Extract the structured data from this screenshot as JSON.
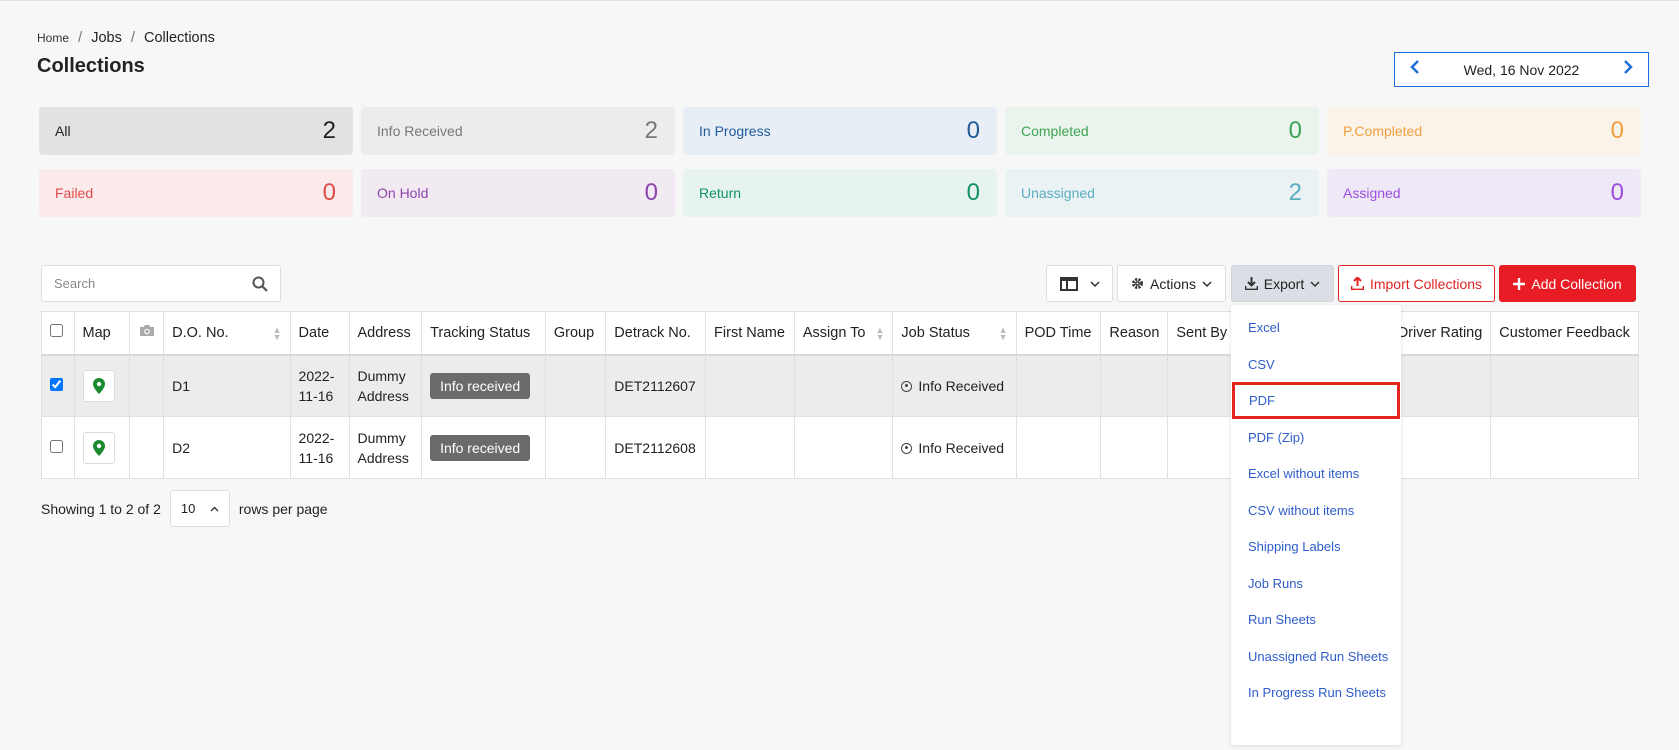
{
  "breadcrumb": {
    "home": "Home",
    "jobs": "Jobs",
    "current": "Collections"
  },
  "page_title": "Collections",
  "date_nav": {
    "date": "Wed, 16 Nov 2022"
  },
  "stats": [
    {
      "label": "All",
      "count": "2",
      "bg": "#e2e2e2",
      "color": "#222222"
    },
    {
      "label": "Info Received",
      "count": "2",
      "bg": "#ececec",
      "color": "#777777"
    },
    {
      "label": "In Progress",
      "count": "0",
      "bg": "#e8eef6",
      "color": "#1f5a99"
    },
    {
      "label": "Completed",
      "count": "0",
      "bg": "#eaf4ec",
      "color": "#3ea455"
    },
    {
      "label": "P.Completed",
      "count": "0",
      "bg": "#fbf2e8",
      "color": "#f0a040"
    },
    {
      "label": "Failed",
      "count": "0",
      "bg": "#fbeaea",
      "color": "#e04b4b"
    },
    {
      "label": "On Hold",
      "count": "0",
      "bg": "#f2eaf3",
      "color": "#8e44ad"
    },
    {
      "label": "Return",
      "count": "0",
      "bg": "#e6f3ef",
      "color": "#12906b"
    },
    {
      "label": "Unassigned",
      "count": "2",
      "bg": "#eaf2f4",
      "color": "#5aaec0"
    },
    {
      "label": "Assigned",
      "count": "0",
      "bg": "#efe8f7",
      "color": "#9b4fe0"
    }
  ],
  "search": {
    "placeholder": "Search"
  },
  "toolbar": {
    "actions_label": "Actions",
    "export_label": "Export",
    "import_label": "Import Collections",
    "add_label": "Add Collection"
  },
  "table": {
    "columns": [
      "",
      "Map",
      "",
      "D.O. No.",
      "Date",
      "Address",
      "Tracking Status",
      "Group",
      "Detrack No.",
      "First Name",
      "Assign To",
      "Job Status",
      "POD Time",
      "Reason",
      "Sent By",
      "",
      "Driver Rating",
      "Customer Feedback"
    ],
    "rows": [
      {
        "do_no": "D1",
        "date": "2022-11-16",
        "address": "Dummy Address",
        "tracking_status": "Info received",
        "detrack_no": "DET2112607",
        "job_status": "Info Received",
        "selected": true
      },
      {
        "do_no": "D2",
        "date": "2022-11-16",
        "address": "Dummy Address",
        "tracking_status": "Info received",
        "detrack_no": "DET2112608",
        "job_status": "Info Received",
        "selected": false
      }
    ]
  },
  "pager": {
    "showing": "Showing 1 to 2 of 2",
    "rows_per_page_value": "10",
    "rows_per_page_label": "rows per page"
  },
  "export_menu": {
    "items": [
      "Excel",
      "CSV",
      "PDF",
      "PDF (Zip)",
      "Excel without items",
      "CSV without items",
      "Shipping Labels",
      "Job Runs",
      "Run Sheets",
      "Unassigned Run Sheets",
      "In Progress Run Sheets"
    ],
    "highlighted": "PDF"
  }
}
